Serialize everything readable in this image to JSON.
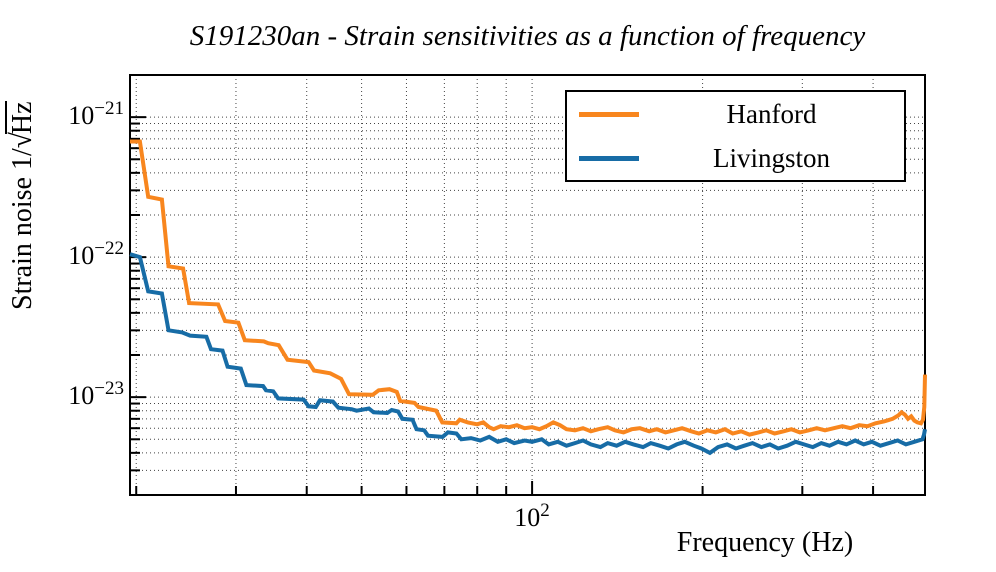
{
  "page": {
    "title": "S191230an - Strain sensitivities as a function of frequency"
  },
  "axes": {
    "x_title": "Frequency (Hz)",
    "y_title_prefix": "Strain noise 1/",
    "y_title_radical": "√",
    "y_title_sqrt_arg": "Hz",
    "x_tick_labels": [
      {
        "base": "10",
        "exp": "2",
        "value": 100
      }
    ],
    "y_tick_labels": [
      {
        "base": "10",
        "exp": "−21",
        "value": 1e-21
      },
      {
        "base": "10",
        "exp": "−22",
        "value": 1e-22
      },
      {
        "base": "10",
        "exp": "−23",
        "value": 1e-23
      }
    ]
  },
  "legend": {
    "entries": [
      {
        "label": "Hanford"
      },
      {
        "label": "Livingston"
      }
    ]
  },
  "chart_data": {
    "type": "line",
    "title": "S191230an - Strain sensitivities as a function of frequency",
    "xlabel": "Frequency (Hz)",
    "ylabel": "Strain noise 1/sqrt(Hz)",
    "xscale": "log",
    "yscale": "log",
    "xlim": [
      19.5,
      494
    ],
    "ylim": [
      2e-24,
      2e-21
    ],
    "grid": true,
    "legend_position": "top-right",
    "x_labeled_ticks": [
      100
    ],
    "y_labeled_ticks": [
      1e-21,
      1e-22,
      1e-23
    ],
    "value_scale": 1e-24,
    "value_unit": "strain/sqrt(Hz), values below are in units of 1e-24",
    "series": [
      {
        "name": "Hanford",
        "color": "#f8861e",
        "points": [
          [
            19.5,
            670
          ],
          [
            20.3,
            670
          ],
          [
            21,
            270
          ],
          [
            22.2,
            258
          ],
          [
            22.8,
            86
          ],
          [
            24.2,
            83
          ],
          [
            24.8,
            47
          ],
          [
            27.9,
            46
          ],
          [
            28.7,
            35
          ],
          [
            30.3,
            34
          ],
          [
            31.1,
            25.5
          ],
          [
            33.6,
            25
          ],
          [
            34.2,
            24.3
          ],
          [
            35.7,
            23.5
          ],
          [
            37,
            18.5
          ],
          [
            40.3,
            17.8
          ],
          [
            41.2,
            15.5
          ],
          [
            44,
            14.8
          ],
          [
            46,
            13.5
          ],
          [
            47.5,
            10.5
          ],
          [
            52.3,
            10.4
          ],
          [
            53.6,
            11.2
          ],
          [
            56,
            11.4
          ],
          [
            57.7,
            10.9
          ],
          [
            58.5,
            9.4
          ],
          [
            62,
            9.1
          ],
          [
            63,
            8.5
          ],
          [
            67.7,
            8
          ],
          [
            69.4,
            6.6
          ],
          [
            73.5,
            6.5
          ],
          [
            74.5,
            6.9
          ],
          [
            77,
            6.6
          ],
          [
            80,
            6.4
          ],
          [
            82,
            6.6
          ],
          [
            84,
            6.1
          ],
          [
            85.5,
            5.9
          ],
          [
            88,
            6.2
          ],
          [
            91,
            6.1
          ],
          [
            94,
            6.3
          ],
          [
            97,
            6
          ],
          [
            100,
            6.1
          ],
          [
            103,
            5.9
          ],
          [
            106,
            6.2
          ],
          [
            109,
            6.6
          ],
          [
            112,
            6.3
          ],
          [
            115,
            5.9
          ],
          [
            119,
            5.8
          ],
          [
            123,
            6
          ],
          [
            127,
            5.7
          ],
          [
            131,
            5.9
          ],
          [
            136,
            6.1
          ],
          [
            140,
            5.8
          ],
          [
            145,
            5.6
          ],
          [
            150,
            5.9
          ],
          [
            155,
            6
          ],
          [
            161,
            5.7
          ],
          [
            166,
            5.9
          ],
          [
            172,
            5.6
          ],
          [
            178,
            5.8
          ],
          [
            184,
            6
          ],
          [
            191,
            5.7
          ],
          [
            197,
            5.5
          ],
          [
            204,
            5.8
          ],
          [
            211,
            5.6
          ],
          [
            219,
            5.9
          ],
          [
            226,
            5.5
          ],
          [
            234,
            5.7
          ],
          [
            242,
            5.4
          ],
          [
            251,
            5.6
          ],
          [
            259,
            5.8
          ],
          [
            268,
            5.5
          ],
          [
            278,
            5.7
          ],
          [
            287,
            5.9
          ],
          [
            297,
            5.6
          ],
          [
            308,
            5.8
          ],
          [
            318,
            6
          ],
          [
            329,
            5.8
          ],
          [
            341,
            6
          ],
          [
            353,
            6.2
          ],
          [
            365,
            6
          ],
          [
            378,
            6.3
          ],
          [
            391,
            6.2
          ],
          [
            404,
            6.5
          ],
          [
            418,
            6.7
          ],
          [
            433,
            7
          ],
          [
            443,
            7.4
          ],
          [
            449,
            7.8
          ],
          [
            455,
            7.5
          ],
          [
            461,
            7
          ],
          [
            467,
            7.3
          ],
          [
            473,
            6.8
          ],
          [
            479,
            6.6
          ],
          [
            486,
            6.5
          ],
          [
            490,
            6.9
          ],
          [
            492.5,
            8.5
          ],
          [
            494,
            14.5
          ]
        ]
      },
      {
        "name": "Livingston",
        "color": "#176ca6",
        "points": [
          [
            19.5,
            105
          ],
          [
            20.3,
            100
          ],
          [
            21,
            57
          ],
          [
            22.2,
            55
          ],
          [
            22.8,
            30
          ],
          [
            24.1,
            29
          ],
          [
            24.9,
            27.5
          ],
          [
            26.6,
            27
          ],
          [
            27.1,
            22
          ],
          [
            28.4,
            21.5
          ],
          [
            29,
            16.5
          ],
          [
            30.6,
            16
          ],
          [
            31.3,
            12.2
          ],
          [
            33.5,
            12
          ],
          [
            33.9,
            11.2
          ],
          [
            34.9,
            11
          ],
          [
            35.6,
            9.8
          ],
          [
            39.5,
            9.6
          ],
          [
            40.3,
            8.6
          ],
          [
            41.5,
            8.5
          ],
          [
            42.2,
            9.5
          ],
          [
            44.5,
            9.3
          ],
          [
            45.5,
            8.4
          ],
          [
            48,
            8.2
          ],
          [
            49,
            8
          ],
          [
            51.5,
            8.3
          ],
          [
            52.5,
            7.8
          ],
          [
            55.5,
            7.7
          ],
          [
            56.5,
            8.1
          ],
          [
            58,
            7.9
          ],
          [
            59,
            7
          ],
          [
            61.5,
            6.9
          ],
          [
            62.5,
            5.9
          ],
          [
            64.5,
            5.8
          ],
          [
            65.5,
            5.3
          ],
          [
            69.5,
            5.2
          ],
          [
            71,
            5.6
          ],
          [
            73.5,
            5.5
          ],
          [
            75,
            5
          ],
          [
            78,
            5.1
          ],
          [
            81,
            4.9
          ],
          [
            84,
            5.2
          ],
          [
            87,
            4.8
          ],
          [
            90,
            5
          ],
          [
            93,
            4.7
          ],
          [
            97,
            4.9
          ],
          [
            100,
            4.8
          ],
          [
            104,
            5
          ],
          [
            107,
            4.6
          ],
          [
            111,
            4.8
          ],
          [
            115,
            4.5
          ],
          [
            119,
            4.7
          ],
          [
            123,
            4.9
          ],
          [
            127,
            4.6
          ],
          [
            132,
            4.4
          ],
          [
            136,
            4.7
          ],
          [
            141,
            4.5
          ],
          [
            146,
            4.8
          ],
          [
            151,
            4.6
          ],
          [
            157,
            4.4
          ],
          [
            162,
            4.7
          ],
          [
            168,
            4.5
          ],
          [
            174,
            4.3
          ],
          [
            180,
            4.6
          ],
          [
            186,
            4.8
          ],
          [
            193,
            4.5
          ],
          [
            199,
            4.3
          ],
          [
            206,
            4
          ],
          [
            213,
            4.4
          ],
          [
            221,
            4.6
          ],
          [
            229,
            4.3
          ],
          [
            237,
            4.5
          ],
          [
            245,
            4.7
          ],
          [
            254,
            4.4
          ],
          [
            263,
            4.6
          ],
          [
            272,
            4.3
          ],
          [
            282,
            4.5
          ],
          [
            292,
            4.8
          ],
          [
            302,
            4.6
          ],
          [
            313,
            4.4
          ],
          [
            324,
            4.7
          ],
          [
            335,
            4.5
          ],
          [
            347,
            4.8
          ],
          [
            359,
            4.6
          ],
          [
            372,
            4.9
          ],
          [
            385,
            4.6
          ],
          [
            398,
            4.8
          ],
          [
            412,
            4.5
          ],
          [
            427,
            4.7
          ],
          [
            442,
            4.9
          ],
          [
            457,
            4.6
          ],
          [
            473,
            4.8
          ],
          [
            489,
            5
          ],
          [
            492,
            5.4
          ],
          [
            494,
            5.9
          ]
        ]
      }
    ]
  }
}
